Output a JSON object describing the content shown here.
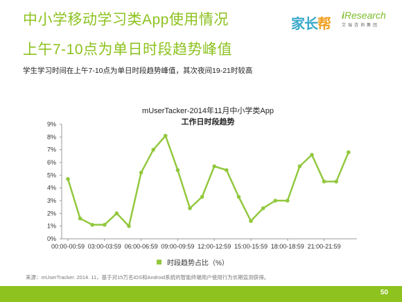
{
  "header": {
    "title": "中小学移动学习类App使用情况",
    "subtitle": "上午7-10点为单日时段趋势峰值",
    "summary": "学生学习时间在上午7-10点为单日时段趋势峰值，其次夜间19-21时较高"
  },
  "logos": {
    "jzb_main": "家长",
    "jzb_accent": "帮",
    "ir_brand_i": "i",
    "ir_brand": "Research",
    "ir_tagline": "艾瑞咨询集团"
  },
  "chart_data": {
    "type": "line",
    "title": "mUserTacker-2014年11月中小学类App",
    "subtitle": "工作日时段趋势",
    "xlabel": "",
    "ylabel": "",
    "ylim": [
      0,
      9
    ],
    "y_unit": "%",
    "grid": false,
    "legend_position": "bottom",
    "color": "#92c83e",
    "x_tick_labels": [
      "00:00-00:59",
      "03:00-03:59",
      "06:00-06:59",
      "09:00-09:59",
      "12:00-12:59",
      "15:00-15:59",
      "18:00-18:59",
      "21:00-21:59"
    ],
    "categories": [
      "00:00-00:59",
      "01:00-01:59",
      "02:00-02:59",
      "03:00-03:59",
      "04:00-04:59",
      "05:00-05:59",
      "06:00-06:59",
      "07:00-07:59",
      "08:00-08:59",
      "09:00-09:59",
      "10:00-10:59",
      "11:00-11:59",
      "12:00-12:59",
      "13:00-13:59",
      "14:00-14:59",
      "15:00-15:59",
      "16:00-16:59",
      "17:00-17:59",
      "18:00-18:59",
      "19:00-19:59",
      "20:00-20:59",
      "21:00-21:59",
      "22:00-22:59",
      "23:00-23:59"
    ],
    "series": [
      {
        "name": "时段趋势占比（%）",
        "values": [
          4.7,
          1.6,
          1.1,
          1.1,
          2.0,
          1.0,
          5.2,
          7.0,
          8.1,
          5.4,
          2.4,
          3.3,
          5.7,
          5.4,
          3.3,
          1.4,
          2.4,
          3.0,
          3.0,
          5.7,
          6.6,
          4.5,
          4.5,
          6.8
        ]
      }
    ],
    "y_ticks": [
      "0%",
      "1%",
      "2%",
      "3%",
      "4%",
      "5%",
      "6%",
      "7%",
      "8%",
      "9%"
    ]
  },
  "legend": {
    "label": "时段趋势占比（%）"
  },
  "footer": {
    "source": "来源：mUserTracker. 2014. 11，基于对15万名iOS和Android系统的智能终端用户使用行为长期监测获得。",
    "page_number": "50"
  }
}
